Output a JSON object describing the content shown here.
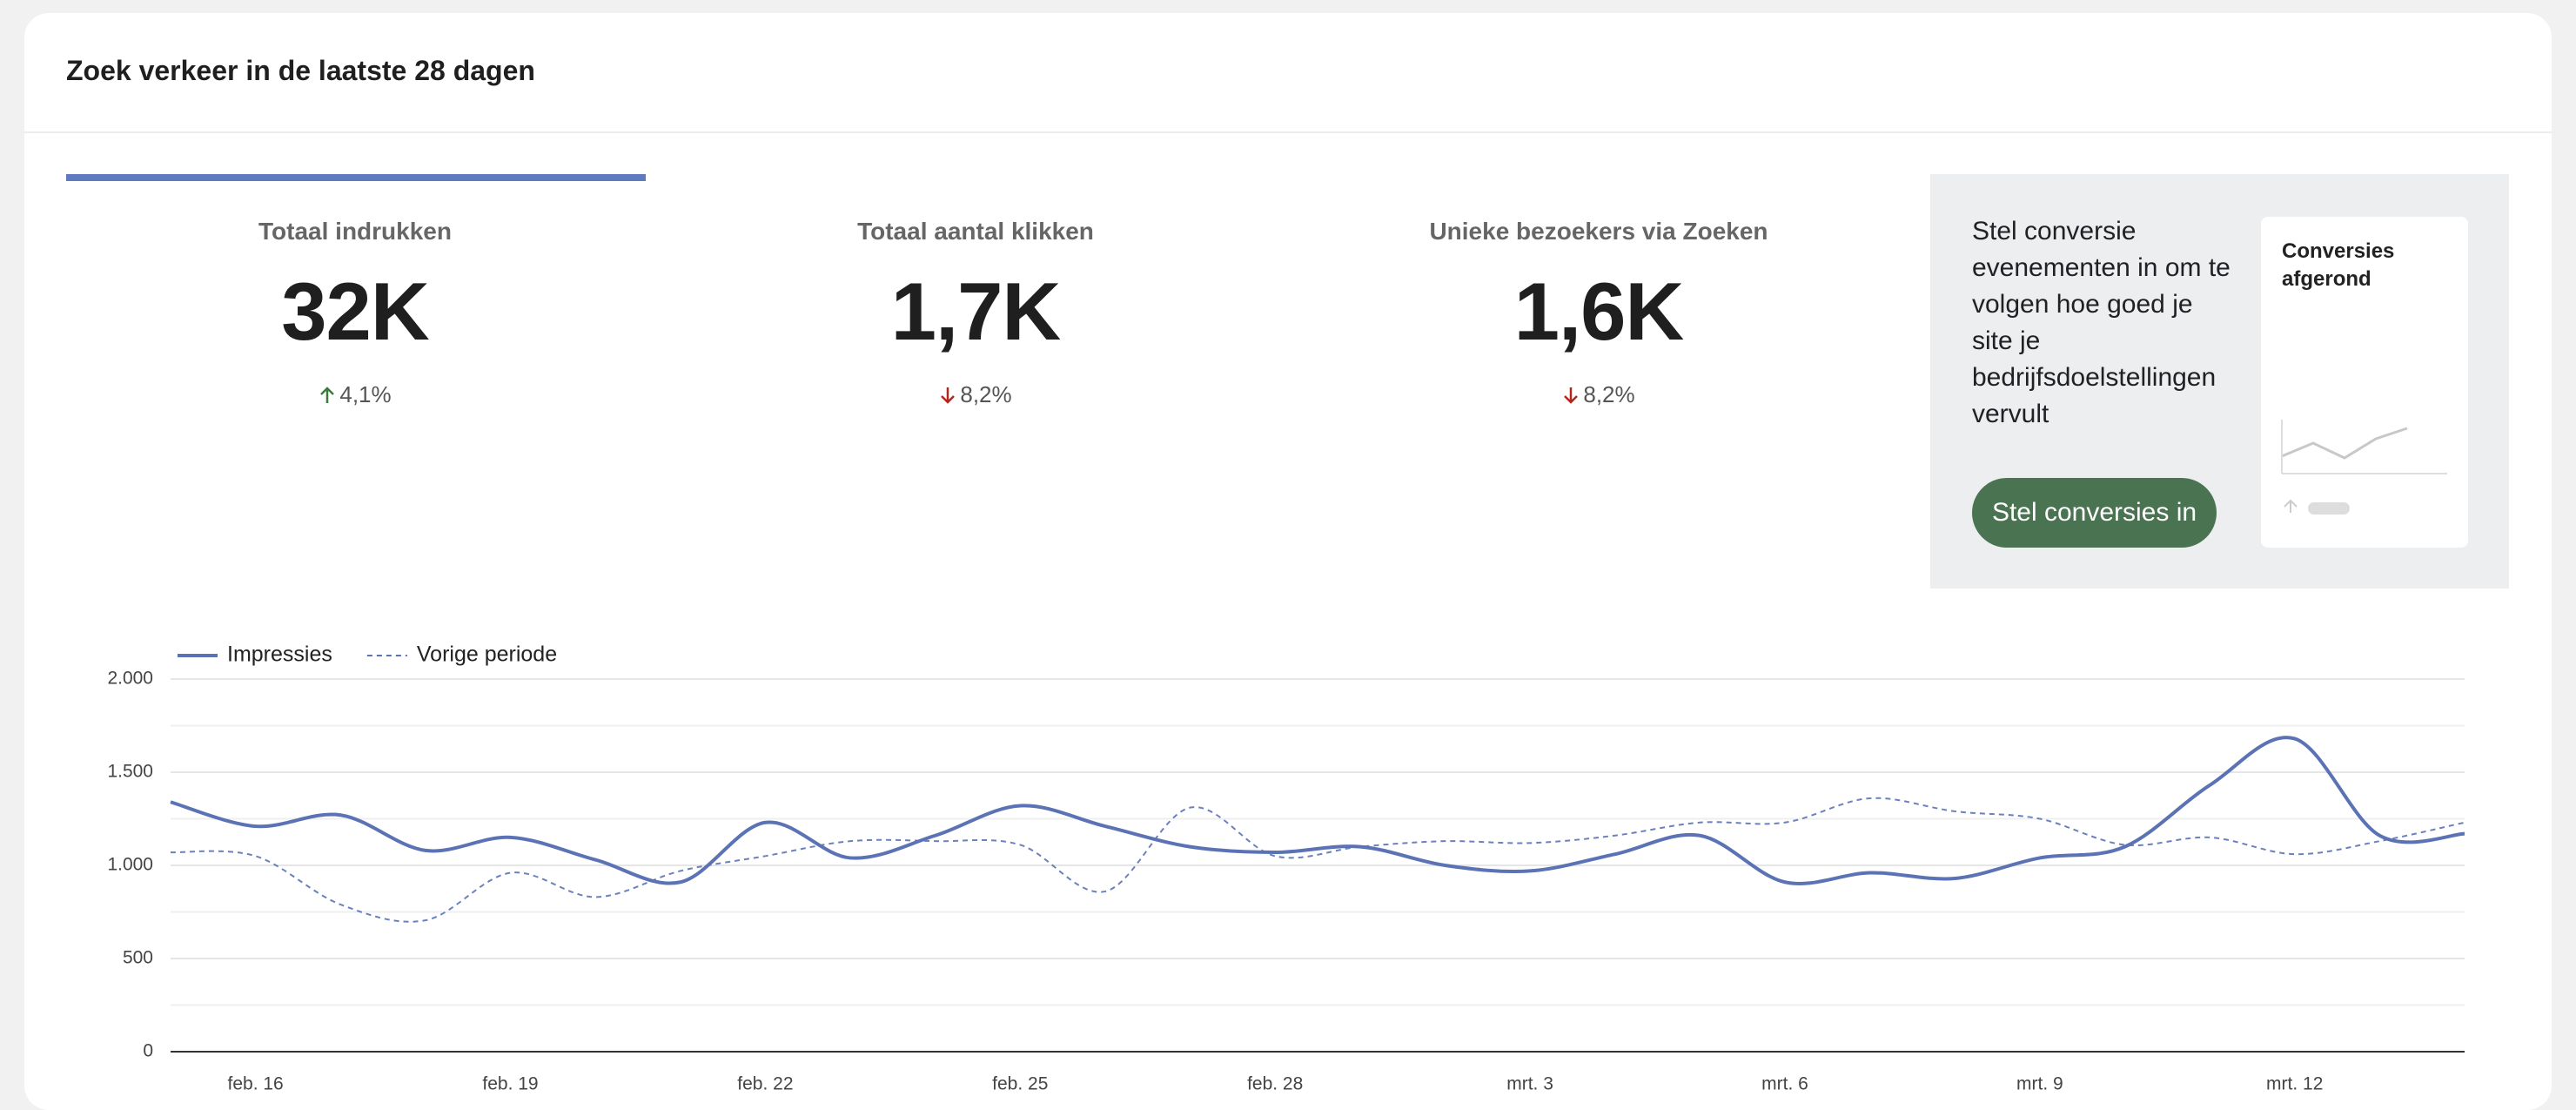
{
  "header": {
    "title": "Zoek verkeer in de laatste 28 dagen"
  },
  "metrics": [
    {
      "label": "Totaal indrukken",
      "value": "32K",
      "change": "4,1%",
      "direction": "up"
    },
    {
      "label": "Totaal aantal klikken",
      "value": "1,7K",
      "change": "8,2%",
      "direction": "down"
    },
    {
      "label": "Unieke bezoekers via Zoeken",
      "value": "1,6K",
      "change": "8,2%",
      "direction": "down"
    }
  ],
  "promo": {
    "text": "Stel conversie evenementen in om te volgen hoe goed je site je bedrijfsdoelstellingen vervult",
    "button": "Stel conversies in",
    "card_title": "Conversies afgerond"
  },
  "chart_data": {
    "type": "line",
    "categories": [
      null,
      "feb. 16",
      null,
      null,
      "feb. 19",
      null,
      null,
      "feb. 22",
      null,
      null,
      "feb. 25",
      null,
      null,
      "feb. 28",
      null,
      null,
      "mrt. 3",
      null,
      null,
      "mrt. 6",
      null,
      null,
      "mrt. 9",
      null,
      null,
      "mrt. 12",
      null,
      null
    ],
    "series": [
      {
        "name": "Impressies",
        "color": "#5b73b5",
        "style": "solid",
        "values": [
          1340,
          1210,
          1270,
          1080,
          1150,
          1030,
          910,
          1230,
          1040,
          1160,
          1320,
          1210,
          1100,
          1070,
          1100,
          1000,
          970,
          1060,
          1160,
          910,
          960,
          930,
          1040,
          1100,
          1430,
          1680,
          1160,
          1170
        ]
      },
      {
        "name": "Vorige periode",
        "color": "#5b73b5",
        "style": "dashed",
        "values": [
          1070,
          1050,
          790,
          705,
          960,
          830,
          970,
          1050,
          1130,
          1130,
          1110,
          860,
          1310,
          1050,
          1100,
          1130,
          1120,
          1160,
          1230,
          1230,
          1360,
          1290,
          1250,
          1110,
          1150,
          1060,
          1130,
          1230
        ]
      }
    ],
    "ylim": [
      0,
      2000
    ],
    "yticks": [
      0,
      {
        "value": 500,
        "label": "500"
      },
      {
        "value": 1000,
        "label": "1.000"
      },
      {
        "value": 1500,
        "label": "1.500"
      },
      {
        "value": 2000,
        "label": "2.000"
      }
    ],
    "grid": true,
    "legend": "top-left"
  }
}
